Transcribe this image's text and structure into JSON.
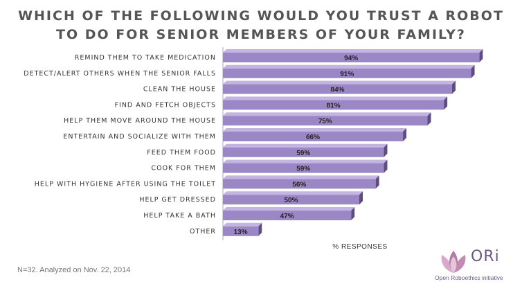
{
  "title_line1": "WHICH OF THE FOLLOWING WOULD YOU TRUST A ROBOT",
  "title_line2": "TO DO FOR SENIOR MEMBERS OF YOUR FAMILY?",
  "footnote": "N=32. Analyzed on Nov. 22, 2014",
  "logo": {
    "name": "ORi",
    "subtitle": "Open Roboethics initiative",
    "icon": "lotus-icon"
  },
  "colors": {
    "bar_front": "#9c87c6",
    "bar_top": "#c3b5e0",
    "bar_side": "#5d4d80",
    "axis": "#aaaaaa"
  },
  "chart_data": {
    "type": "bar",
    "orientation": "horizontal",
    "title": "WHICH OF THE FOLLOWING WOULD YOU TRUST A ROBOT TO DO FOR SENIOR MEMBERS OF YOUR FAMILY?",
    "xlabel": "% RESPONSES",
    "ylabel": "",
    "xlim": [
      0,
      100
    ],
    "grid": false,
    "categories": [
      "REMIND THEM TO TAKE MEDICATION",
      "DETECT/ALERT OTHERS WHEN THE SENIOR FALLS",
      "CLEAN THE HOUSE",
      "FIND AND FETCH OBJECTS",
      "HELP THEM MOVE AROUND THE HOUSE",
      "ENTERTAIN AND SOCIALIZE WITH THEM",
      "FEED THEM FOOD",
      "COOK FOR THEM",
      "HELP WITH HYGIENE AFTER USING THE TOILET",
      "HELP GET DRESSED",
      "HELP TAKE A BATH",
      "OTHER"
    ],
    "values": [
      94,
      91,
      84,
      81,
      75,
      66,
      59,
      59,
      56,
      50,
      47,
      13
    ],
    "value_labels": [
      "94%",
      "91%",
      "84%",
      "81%",
      "75%",
      "66%",
      "59%",
      "59%",
      "56%",
      "50%",
      "47%",
      "13%"
    ]
  }
}
